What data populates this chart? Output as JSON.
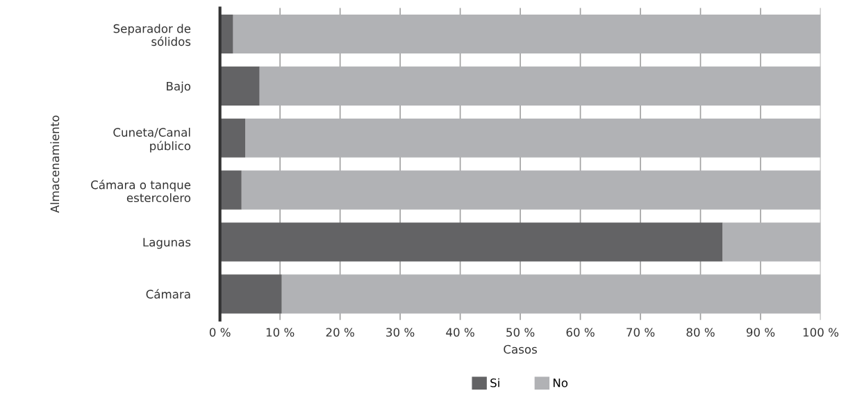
{
  "chart_data": {
    "type": "bar",
    "orientation": "horizontal",
    "stacked": true,
    "xlabel": "Casos",
    "ylabel": "Almacenamiento",
    "categories": [
      "Separador de\nsólidos",
      "Bajo",
      "Cuneta/Canal\npúblico",
      "Cámara o tanque\nestercolero",
      "Lagunas",
      "Cámara"
    ],
    "series": [
      {
        "name": "Si",
        "color": "#636365",
        "values": [
          2.2,
          6.6,
          4.2,
          3.6,
          83.7,
          10.3
        ]
      },
      {
        "name": "No",
        "color": "#b1b2b5",
        "values": [
          97.8,
          93.4,
          95.8,
          96.4,
          16.3,
          89.7
        ]
      }
    ],
    "xlim": [
      0,
      100
    ],
    "xticks": [
      {
        "value": 0,
        "label": "0 %"
      },
      {
        "value": 10,
        "label": "10 %"
      },
      {
        "value": 20,
        "label": "20 %"
      },
      {
        "value": 30,
        "label": "30 %"
      },
      {
        "value": 40,
        "label": "40 %"
      },
      {
        "value": 50,
        "label": "50 %"
      },
      {
        "value": 60,
        "label": "60 %"
      },
      {
        "value": 70,
        "label": "70 %"
      },
      {
        "value": 80,
        "label": "80 %"
      },
      {
        "value": 90,
        "label": "90 %"
      },
      {
        "value": 100,
        "label": "100 %"
      }
    ],
    "grid": "x",
    "legend": "bottom"
  }
}
